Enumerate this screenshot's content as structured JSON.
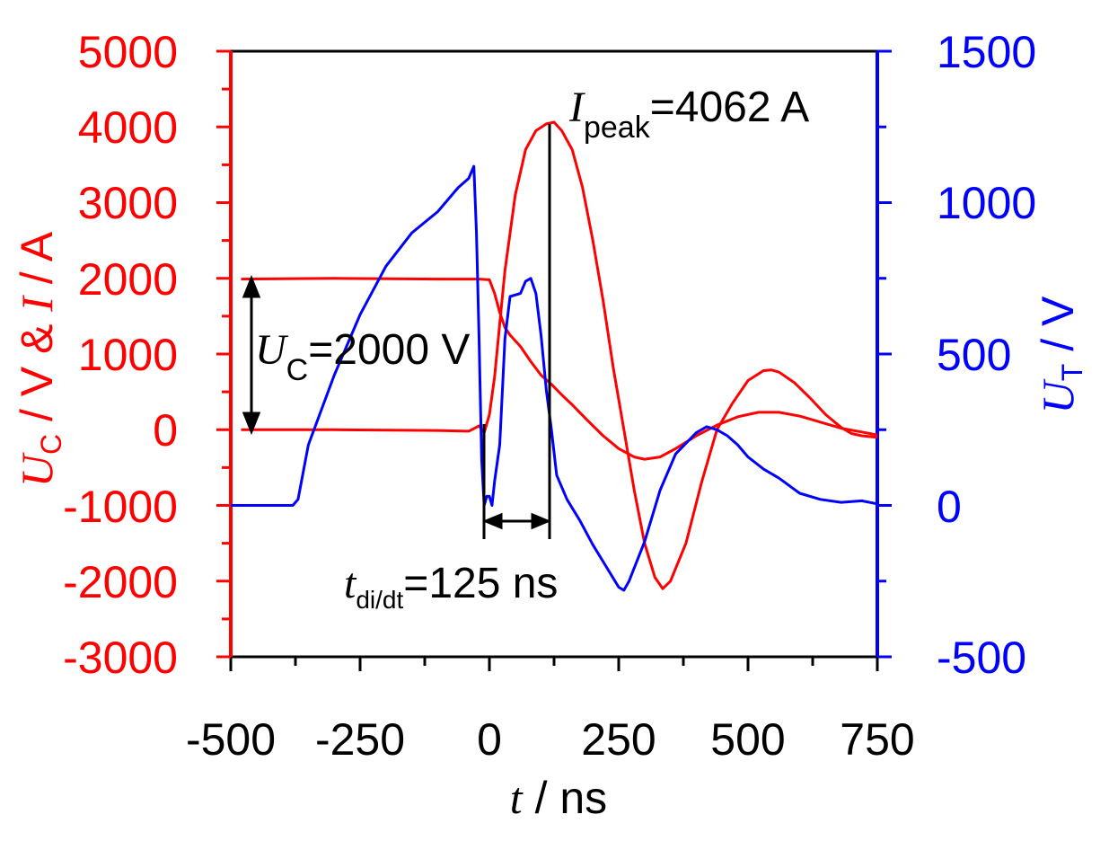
{
  "colors": {
    "left_axis": "#ff0000",
    "right_axis": "#0000ff",
    "frame": "#000000",
    "current": "#ff0000",
    "capacitor": "#ff0000",
    "thyristor": "#0000ff"
  },
  "axes": {
    "x": {
      "label_var": "t",
      "label_rest": " / ns",
      "ticks": [
        "-500",
        "-250",
        "0",
        "250",
        "500",
        "750"
      ]
    },
    "y_left": {
      "label_var1": "U",
      "label_sub1": "C",
      "label_mid": " / V & ",
      "label_var2": "I",
      "label_rest": " / A",
      "ticks": [
        "5000",
        "4000",
        "3000",
        "2000",
        "1000",
        "0",
        "-1000",
        "-2000",
        "-3000"
      ]
    },
    "y_right": {
      "label_var": "U",
      "label_sub": "T",
      "label_rest": " / V",
      "ticks": [
        "1500",
        "1000",
        "500",
        "0",
        "-500"
      ]
    }
  },
  "annotations": {
    "ipeak": {
      "var": "I",
      "sub": "peak",
      "text": "=4062 A"
    },
    "uc": {
      "var": "U",
      "sub": "C",
      "text": "=2000 V"
    },
    "tdidt": {
      "var": "t",
      "sub": "di/dt",
      "text": "=125 ns"
    }
  },
  "chart_data": {
    "type": "line",
    "xlabel": "t / ns",
    "ylabel_left": "U_C / V & I / A",
    "ylabel_right": "U_T / V",
    "xlim": [
      -500,
      750
    ],
    "ylim_left": [
      -3000,
      5000
    ],
    "ylim_right": [
      -500,
      1500
    ],
    "grid": false,
    "series": [
      {
        "axis": "left",
        "x": [
          -480,
          -300,
          -100,
          -40,
          -20,
          -10,
          0,
          10,
          20,
          30,
          50,
          70,
          90,
          110,
          125,
          140,
          160,
          180,
          200,
          220,
          240,
          260,
          280,
          300,
          320,
          335,
          350,
          380,
          410,
          440,
          470,
          500,
          530,
          545,
          560,
          590,
          620,
          650,
          680,
          700,
          720,
          750
        ],
        "y": [
          0,
          0,
          -10,
          -20,
          50,
          -40,
          200,
          700,
          1400,
          2100,
          3100,
          3700,
          3950,
          4040,
          4062,
          3950,
          3700,
          3200,
          2500,
          1700,
          800,
          0,
          -800,
          -1500,
          -1950,
          -2100,
          -2000,
          -1500,
          -700,
          0,
          350,
          650,
          780,
          790,
          760,
          620,
          420,
          200,
          30,
          -50,
          -80,
          -100
        ]
      },
      {
        "axis": "left",
        "x": [
          -480,
          -300,
          -100,
          -20,
          0,
          10,
          20,
          30,
          40,
          60,
          80,
          100,
          120,
          140,
          160,
          190,
          220,
          250,
          280,
          300,
          330,
          360,
          400,
          440,
          480,
          520,
          560,
          600,
          640,
          680,
          720,
          750
        ],
        "y": [
          1990,
          2000,
          1990,
          1990,
          1980,
          1800,
          1550,
          1350,
          1250,
          1100,
          900,
          720,
          600,
          460,
          330,
          120,
          -80,
          -250,
          -360,
          -390,
          -360,
          -250,
          -80,
          60,
          170,
          230,
          230,
          180,
          100,
          20,
          -30,
          -70
        ]
      },
      {
        "axis": "right",
        "x": [
          -500,
          -450,
          -400,
          -380,
          -370,
          -350,
          -300,
          -250,
          -200,
          -150,
          -100,
          -80,
          -60,
          -40,
          -35,
          -30,
          -25,
          -20,
          -15,
          -10,
          -5,
          0,
          5,
          10,
          20,
          30,
          40,
          60,
          70,
          80,
          90,
          100,
          110,
          120,
          130,
          150,
          175,
          200,
          225,
          250,
          260,
          270,
          300,
          330,
          360,
          400,
          420,
          440,
          460,
          480,
          500,
          530,
          560,
          600,
          640,
          680,
          720,
          750
        ],
        "y": [
          0,
          0,
          0,
          0,
          20,
          200,
          430,
          630,
          790,
          900,
          970,
          1010,
          1050,
          1080,
          1100,
          1120,
          900,
          550,
          150,
          0,
          30,
          30,
          0,
          80,
          200,
          550,
          690,
          700,
          740,
          750,
          700,
          560,
          380,
          250,
          100,
          20,
          -50,
          -130,
          -200,
          -270,
          -280,
          -250,
          -120,
          50,
          170,
          240,
          260,
          250,
          230,
          200,
          160,
          120,
          90,
          40,
          20,
          10,
          15,
          5
        ]
      }
    ]
  }
}
